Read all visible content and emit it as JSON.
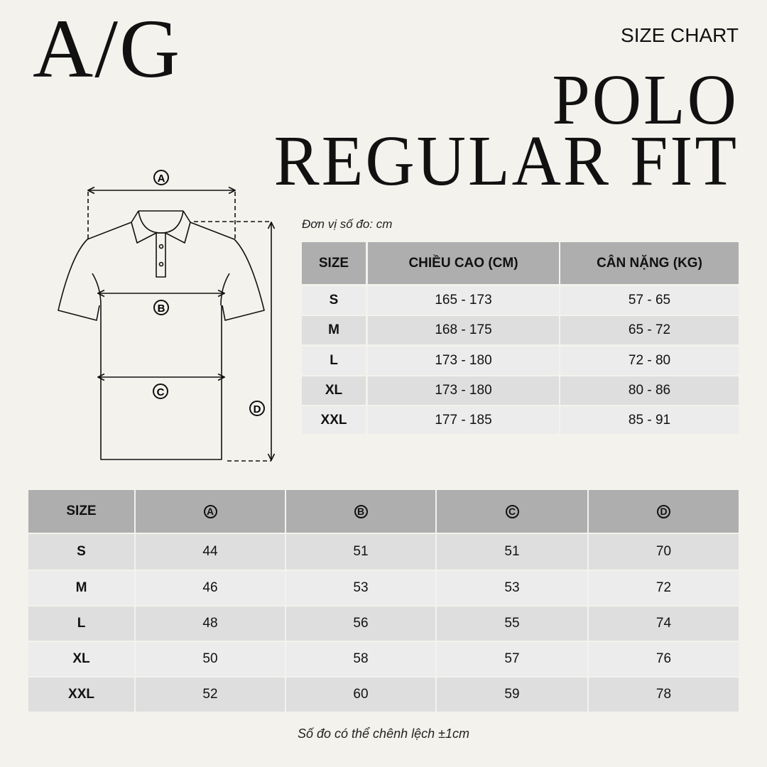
{
  "header": {
    "logo": "A/G",
    "label": "SIZE CHART",
    "title_line1": "POLO",
    "title_line2": "REGULAR FIT"
  },
  "diagram": {
    "labels": [
      "A",
      "B",
      "C",
      "D"
    ]
  },
  "body_table": {
    "unit_note": "Đơn vị số đo: cm",
    "headers": [
      "SIZE",
      "CHIỀU CAO (CM)",
      "CÂN NẶNG (KG)"
    ],
    "rows": [
      [
        "S",
        "165 - 173",
        "57 - 65"
      ],
      [
        "M",
        "168 - 175",
        "65 - 72"
      ],
      [
        "L",
        "173 - 180",
        "72 - 80"
      ],
      [
        "XL",
        "173 - 180",
        "80 - 86"
      ],
      [
        "XXL",
        "177 - 185",
        "85 - 91"
      ]
    ]
  },
  "measure_table": {
    "headers": [
      "SIZE",
      "A",
      "B",
      "C",
      "D"
    ],
    "rows": [
      [
        "S",
        "44",
        "51",
        "51",
        "70"
      ],
      [
        "M",
        "46",
        "53",
        "53",
        "72"
      ],
      [
        "L",
        "48",
        "56",
        "55",
        "74"
      ],
      [
        "XL",
        "50",
        "58",
        "57",
        "76"
      ],
      [
        "XXL",
        "52",
        "60",
        "59",
        "78"
      ]
    ],
    "footnote": "Số đo có thể chênh lệch ±1cm"
  },
  "colors": {
    "background": "#f3f2ed",
    "header_cell": "#aeaeae",
    "row_light": "#ececec",
    "row_dark": "#dedede"
  }
}
